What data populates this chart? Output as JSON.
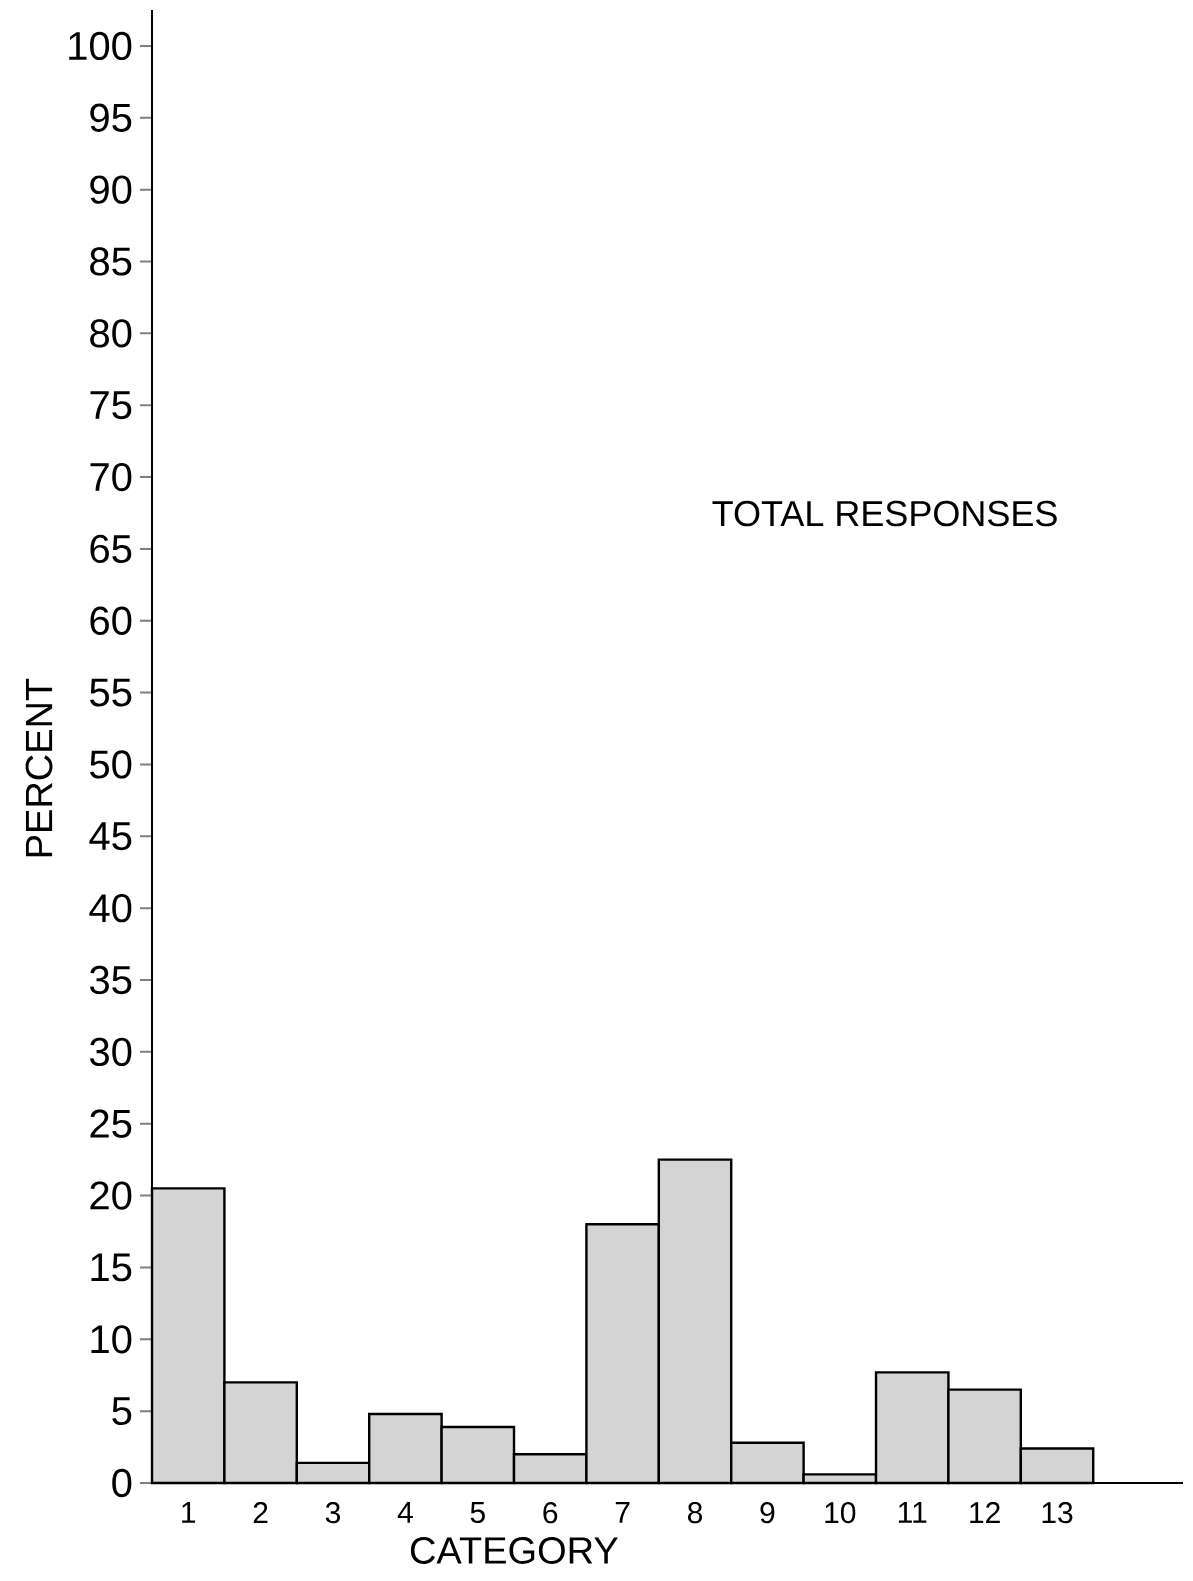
{
  "chart_data": {
    "type": "bar",
    "title": "TOTAL  RESPONSES",
    "xlabel": "CATEGORY",
    "ylabel": "PERCENT",
    "categories": [
      "1",
      "2",
      "3",
      "4",
      "5",
      "6",
      "7",
      "8",
      "9",
      "10",
      "11",
      "12",
      "13"
    ],
    "values": [
      20.5,
      7,
      1.4,
      4.8,
      3.9,
      2,
      18,
      22.5,
      2.8,
      0.6,
      7.7,
      6.5,
      2.4
    ],
    "color": "#d4d4d4",
    "ylim": [
      0,
      102.5
    ],
    "yticks": [
      0,
      5,
      10,
      15,
      20,
      25,
      30,
      35,
      40,
      45,
      50,
      55,
      60,
      65,
      70,
      75,
      80,
      85,
      90,
      95,
      100
    ]
  }
}
